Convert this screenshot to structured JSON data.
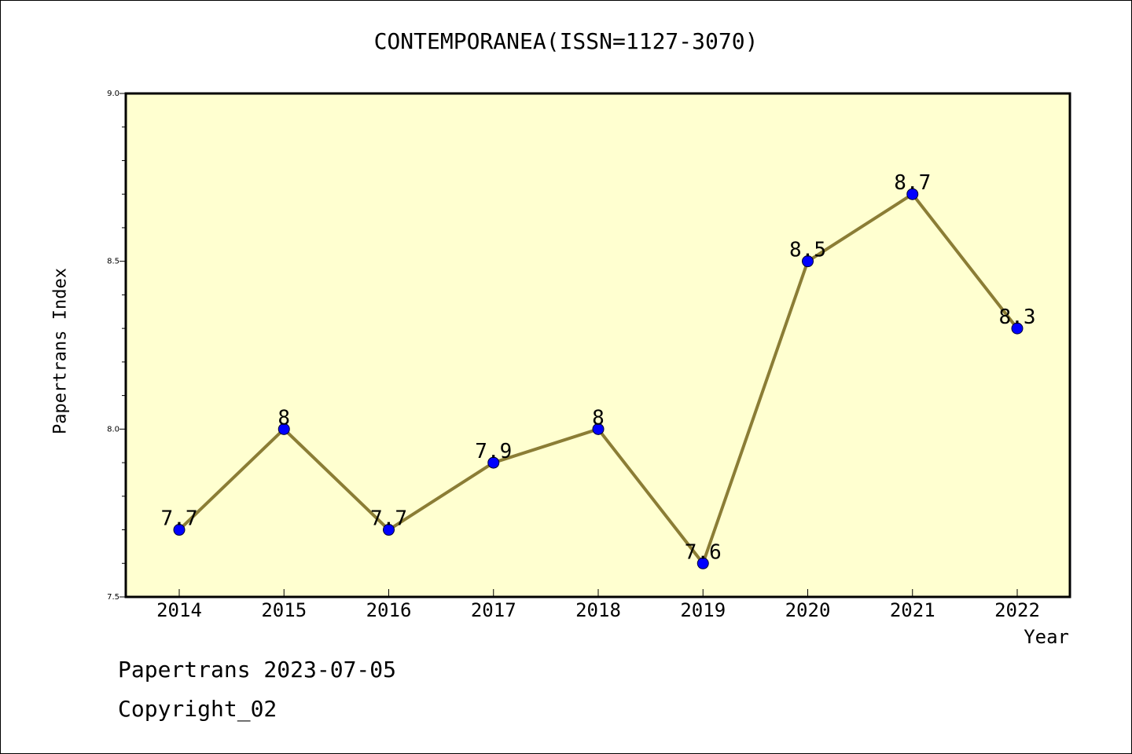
{
  "chart_data": {
    "type": "line",
    "title": "CONTEMPORANEA(ISSN=1127-3070)",
    "xlabel": "Year",
    "ylabel": "Papertrans Index",
    "categories": [
      "2014",
      "2015",
      "2016",
      "2017",
      "2018",
      "2019",
      "2020",
      "2021",
      "2022"
    ],
    "series": [
      {
        "values": [
          7.7,
          8.0,
          7.7,
          7.9,
          8.0,
          7.6,
          8.5,
          8.7,
          8.3
        ],
        "labels": [
          "7.7",
          "8",
          "7.7",
          "7.9",
          "8",
          "7.6",
          "8.5",
          "8.7",
          "8.3"
        ]
      }
    ],
    "ylim": [
      7.5,
      9.0
    ],
    "yticks": [
      "7.5",
      "8.0",
      "8.5",
      "9.0"
    ],
    "colors": {
      "plot_background": "#ffffd0",
      "line": "#8b7d35",
      "marker": "#0000ff"
    },
    "grid": false
  },
  "footer": {
    "line1": "Papertrans 2023-07-05",
    "line2": "Copyright_02"
  }
}
